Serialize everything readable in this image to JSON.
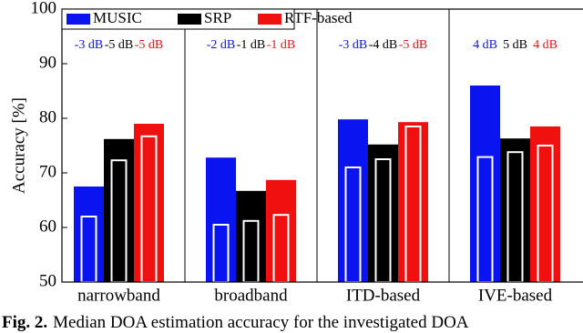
{
  "chart_data": {
    "type": "bar",
    "y_label": "Accuracy [%]",
    "categories": [
      "narrowband",
      "broadband",
      "ITD-based",
      "IVE-based"
    ],
    "series": [
      {
        "name": "MUSIC",
        "color": "#0a14f0",
        "values": [
          67.5,
          72.8,
          79.8,
          86
        ],
        "inner_values": [
          62,
          60.5,
          71,
          72.9
        ],
        "labels": [
          "-3 dB",
          "-2 dB",
          "-3 dB",
          "4 dB"
        ]
      },
      {
        "name": "SRP",
        "color": "#000000",
        "values": [
          76.2,
          66.7,
          75.2,
          76.3
        ],
        "inner_values": [
          72.3,
          61.2,
          72.5,
          73.8
        ],
        "labels": [
          "-5 dB",
          "-1 dB",
          "-4 dB",
          "5 dB"
        ]
      },
      {
        "name": "RTF-based",
        "color": "#f01010",
        "values": [
          79,
          68.7,
          79.3,
          78.5
        ],
        "inner_values": [
          76.7,
          62.3,
          78.5,
          75
        ],
        "labels": [
          "-5 dB",
          "-1 dB",
          "-5 dB",
          "4 dB"
        ]
      }
    ],
    "ylim": [
      50,
      100
    ],
    "yticks": [
      50,
      60,
      70,
      80,
      90,
      100
    ],
    "caption_label": "Fig. 2.",
    "caption": "Median DOA estimation accuracy for the investigated DOA"
  }
}
